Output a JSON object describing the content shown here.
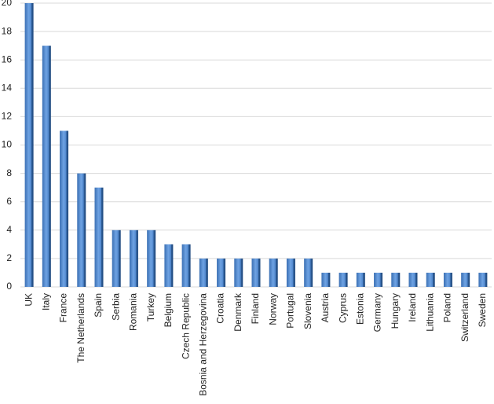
{
  "chart_data": {
    "type": "bar",
    "categories": [
      "UK",
      "Italy",
      "France",
      "The Netherlands",
      "Spain",
      "Serbia",
      "Romania",
      "Turkey",
      "Belgium",
      "Czech Republic",
      "Bosnia and Herzegovina",
      "Croatia",
      "Denmark",
      "Finland",
      "Norway",
      "Portugal",
      "Slovenia",
      "Austria",
      "Cyprus",
      "Estonia",
      "Germany",
      "Hungary",
      "Ireland",
      "Lithuania",
      "Poland",
      "Switzerland",
      "Sweden"
    ],
    "values": [
      20,
      17,
      11,
      8,
      7,
      4,
      4,
      4,
      3,
      3,
      2,
      2,
      2,
      2,
      2,
      2,
      2,
      1,
      1,
      1,
      1,
      1,
      1,
      1,
      1,
      1,
      1
    ],
    "color": "#4f86cc",
    "ylim": [
      0,
      20
    ],
    "yticks": [
      0,
      2,
      4,
      6,
      8,
      10,
      12,
      14,
      16,
      18,
      20
    ],
    "grid": true
  }
}
